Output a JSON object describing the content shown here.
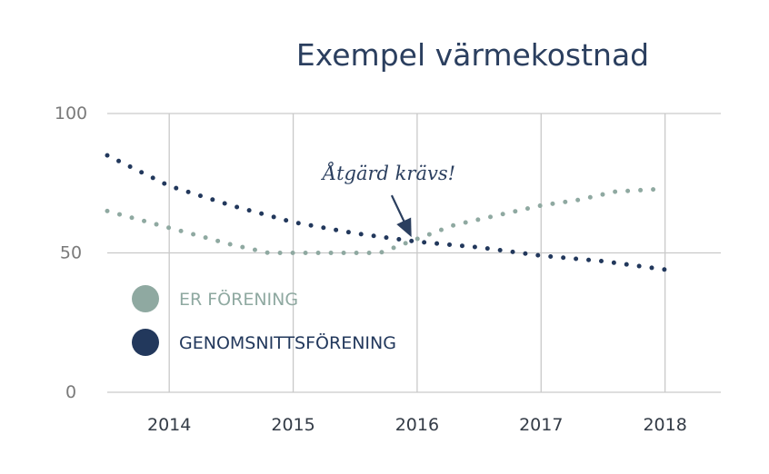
{
  "chart_data": {
    "type": "line",
    "title": "Exempel värmekostnad",
    "xlabel": "",
    "ylabel": "",
    "xlim": [
      2013.5,
      2018.45
    ],
    "ylim": [
      0,
      100
    ],
    "x_ticks": [
      "2014",
      "2015",
      "2016",
      "2017",
      "2018"
    ],
    "y_ticks": [
      "0",
      "50",
      "100"
    ],
    "grid": true,
    "legend_position": "left",
    "series": [
      {
        "name": "ER FÖRENING",
        "color": "#8fa9a1",
        "style": "dotted",
        "x": [
          2013.5,
          2014.0,
          2014.5,
          2014.8,
          2015.0,
          2015.3,
          2015.7,
          2016.0,
          2016.3,
          2016.7,
          2017.0,
          2017.3,
          2017.6,
          2018.0
        ],
        "y": [
          65,
          59,
          53,
          50,
          50,
          50,
          50,
          55,
          60,
          64,
          67,
          69,
          72,
          73
        ]
      },
      {
        "name": "GENOMSNITTSFÖRENING",
        "color": "#22385c",
        "style": "dotted",
        "x": [
          2013.5,
          2014.0,
          2014.5,
          2015.0,
          2015.5,
          2016.0,
          2016.5,
          2017.0,
          2017.5,
          2018.0
        ],
        "y": [
          85,
          74,
          67,
          61,
          57,
          54,
          52,
          49,
          47,
          44
        ]
      }
    ],
    "annotations": [
      {
        "text": "Åtgärd krävs!",
        "x": 2016.0,
        "y": 55
      }
    ]
  }
}
